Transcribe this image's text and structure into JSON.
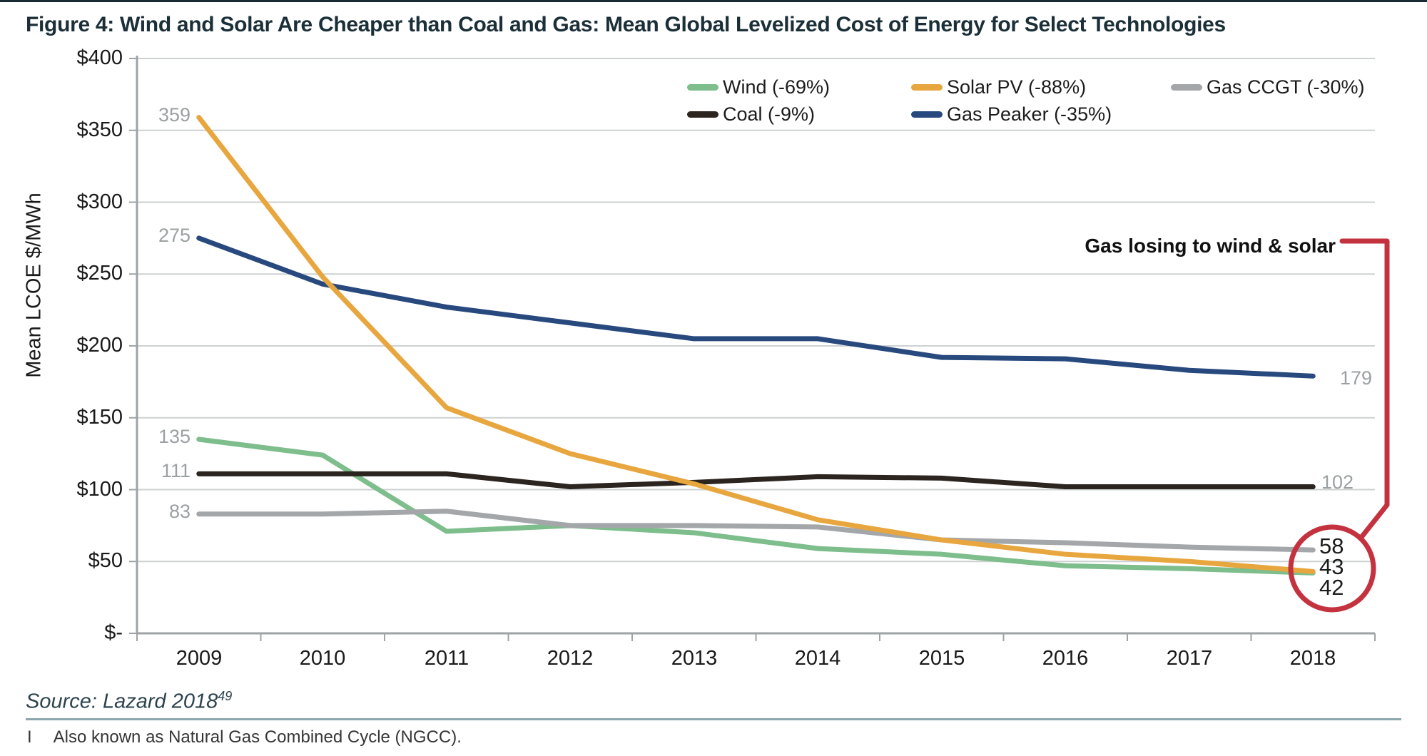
{
  "title": "Figure 4: Wind and Solar Are Cheaper than Coal and Gas: Mean Global Levelized Cost of Energy for Select Technologies",
  "legend": {
    "items": [
      {
        "label": "Wind (-69%)",
        "color": "#7ebd8c"
      },
      {
        "label": "Solar PV (-88%)",
        "color": "#e8a63f"
      },
      {
        "label": "Gas CCGT (-30%)",
        "color": "#a3a7aa"
      },
      {
        "label": "Coal (-9%)",
        "color": "#2b241f"
      },
      {
        "label": "Gas Peaker (-35%)",
        "color": "#27497e"
      }
    ]
  },
  "annotation": {
    "label": "Gas losing to wind & solar",
    "color": "#c3323e"
  },
  "footer": {
    "source": "Source: Lazard 2018",
    "source_superscript": "49",
    "footnote_marker": "I",
    "footnote_text": "Also known as Natural Gas Combined Cycle (NGCC)."
  },
  "chart_data": {
    "type": "line",
    "title": "Mean Global Levelized Cost of Energy for Select Technologies",
    "xlabel": "",
    "ylabel": "Mean LCOE $/MWh",
    "ylim": [
      0,
      400
    ],
    "y_tick_labels": [
      "$400",
      "$350",
      "$300",
      "$250",
      "$200",
      "$150",
      "$100",
      "$50",
      "$-"
    ],
    "categories": [
      "2009",
      "2010",
      "2011",
      "2012",
      "2013",
      "2014",
      "2015",
      "2016",
      "2017",
      "2018"
    ],
    "grid": true,
    "legend_position": "top",
    "series": [
      {
        "name": "Wind (-69%)",
        "color": "#7ebd8c",
        "values": [
          135,
          124,
          71,
          75,
          70,
          59,
          55,
          47,
          45,
          42
        ]
      },
      {
        "name": "Gas CCGT (-30%)",
        "color": "#a3a7aa",
        "values": [
          83,
          83,
          85,
          75,
          75,
          74,
          65,
          63,
          60,
          58
        ]
      },
      {
        "name": "Coal (-9%)",
        "color": "#2b241f",
        "values": [
          111,
          111,
          111,
          102,
          105,
          109,
          108,
          102,
          102,
          102
        ]
      },
      {
        "name": "Gas Peaker (-35%)",
        "color": "#27497e",
        "values": [
          275,
          243,
          227,
          216,
          205,
          205,
          192,
          191,
          183,
          179
        ]
      },
      {
        "name": "Solar PV (-88%)",
        "color": "#e8a63f",
        "values": [
          359,
          248,
          157,
          125,
          104,
          79,
          65,
          55,
          50,
          43
        ]
      }
    ]
  }
}
